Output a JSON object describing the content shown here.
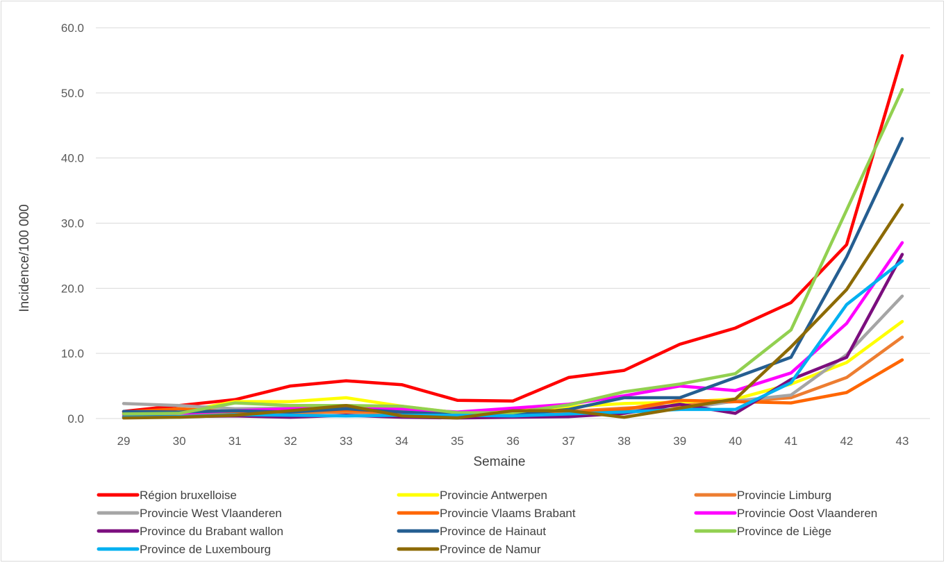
{
  "chart_data": {
    "type": "line",
    "title": "",
    "xlabel": "Semaine",
    "ylabel": "Incidence/100 000",
    "ylim": [
      0,
      60
    ],
    "yticks": [
      "0.0",
      "10.0",
      "20.0",
      "30.0",
      "40.0",
      "50.0",
      "60.0"
    ],
    "grid": "horizontal",
    "legend_position": "bottom",
    "categories": [
      "29",
      "30",
      "31",
      "32",
      "33",
      "34",
      "35",
      "36",
      "37",
      "38",
      "39",
      "40",
      "41",
      "42",
      "43"
    ],
    "series": [
      {
        "name": "Région bruxelloise",
        "color": "#ff0000",
        "values": [
          1.1,
          2.0,
          2.9,
          5.0,
          5.8,
          5.2,
          2.8,
          2.7,
          6.3,
          7.4,
          11.4,
          13.9,
          17.8,
          26.7,
          55.7
        ]
      },
      {
        "name": "Provincie Antwerpen",
        "color": "#ffff00",
        "values": [
          0.8,
          1.0,
          2.6,
          2.6,
          3.2,
          1.9,
          0.9,
          1.2,
          1.8,
          2.3,
          2.5,
          3.0,
          5.3,
          8.6,
          14.9
        ]
      },
      {
        "name": "Provincie Limburg",
        "color": "#ed7d31",
        "values": [
          0.7,
          0.8,
          0.9,
          0.9,
          1.0,
          0.8,
          0.5,
          0.9,
          1.1,
          1.6,
          2.0,
          2.6,
          3.2,
          6.3,
          12.5
        ]
      },
      {
        "name": "Provincie West Vlaanderen",
        "color": "#a5a5a5",
        "values": [
          2.3,
          2.0,
          1.5,
          1.6,
          1.7,
          1.3,
          0.7,
          0.9,
          1.0,
          1.2,
          1.4,
          2.7,
          3.6,
          9.8,
          18.8
        ]
      },
      {
        "name": "Provincie Vlaams Brabant",
        "color": "#ff6600",
        "values": [
          1.0,
          1.5,
          1.0,
          1.2,
          1.3,
          1.0,
          0.6,
          0.8,
          0.9,
          1.4,
          2.8,
          2.6,
          2.4,
          4.0,
          9.0
        ]
      },
      {
        "name": "Provincie Oost Vlaanderen",
        "color": "#ff00ff",
        "values": [
          0.6,
          0.8,
          1.2,
          1.5,
          1.6,
          1.5,
          1.0,
          1.6,
          2.2,
          3.5,
          5.0,
          4.3,
          7.0,
          14.6,
          27.0
        ]
      },
      {
        "name": "Province du Brabant wallon",
        "color": "#7b0e7e",
        "values": [
          0.3,
          0.3,
          0.4,
          0.2,
          0.5,
          0.2,
          0.1,
          0.2,
          0.3,
          0.8,
          2.2,
          0.8,
          6.0,
          9.4,
          25.2
        ]
      },
      {
        "name": "Province de Hainaut",
        "color": "#255e91",
        "values": [
          1.1,
          1.0,
          1.2,
          1.0,
          1.5,
          1.0,
          0.6,
          0.6,
          1.4,
          3.2,
          3.2,
          6.3,
          9.4,
          24.8,
          43.0
        ]
      },
      {
        "name": "Province de Liège",
        "color": "#92d050",
        "values": [
          0.7,
          0.8,
          2.4,
          2.0,
          2.0,
          1.9,
          0.9,
          0.9,
          2.1,
          4.1,
          5.3,
          6.9,
          13.6,
          32.0,
          50.5
        ]
      },
      {
        "name": "Province de Luxembourg",
        "color": "#00b0f0",
        "values": [
          0.2,
          0.3,
          0.6,
          0.5,
          0.4,
          0.5,
          0.5,
          0.4,
          0.7,
          1.0,
          1.4,
          1.4,
          5.5,
          17.5,
          24.2
        ]
      },
      {
        "name": "Province de Namur",
        "color": "#8c6a04",
        "values": [
          0.1,
          0.2,
          0.5,
          1.2,
          2.0,
          0.4,
          0.1,
          1.2,
          1.2,
          0.2,
          1.6,
          3.0,
          11.0,
          19.8,
          32.8
        ]
      }
    ]
  }
}
